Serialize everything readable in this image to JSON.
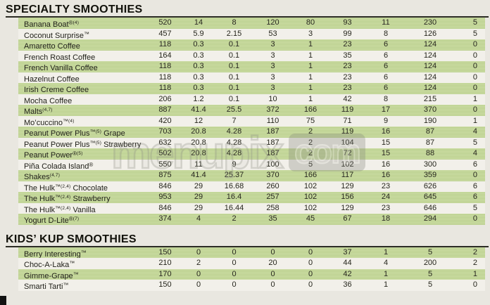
{
  "page": {
    "background": "#e9e7e0",
    "row_green": "#bdd18f",
    "row_green_stripe": "#cedea7",
    "row_white": "#f2f0ea",
    "rule_color": "#2b2b24",
    "corner_artifact_color": "#121212"
  },
  "watermark": {
    "text_main": "menupix",
    "text_suffix": "com"
  },
  "sections": [
    {
      "title": "SPECIALTY SMOOTHIES",
      "rows": [
        {
          "name": "Banana Boat",
          "mark": "®",
          "note": "(4)",
          "suffix": "",
          "values": [
            "520",
            "14",
            "8",
            "120",
            "80",
            "93",
            "11",
            "230",
            "5"
          ]
        },
        {
          "name": "Coconut Surprise",
          "mark": "™",
          "note": "",
          "suffix": "",
          "values": [
            "457",
            "5.9",
            "2.15",
            "53",
            "3",
            "99",
            "8",
            "126",
            "5"
          ]
        },
        {
          "name": "Amaretto Coffee",
          "mark": "",
          "note": "",
          "suffix": "",
          "values": [
            "118",
            "0.3",
            "0.1",
            "3",
            "1",
            "23",
            "6",
            "124",
            "0"
          ]
        },
        {
          "name": "French Roast Coffee",
          "mark": "",
          "note": "",
          "suffix": "",
          "values": [
            "164",
            "0.3",
            "0.1",
            "3",
            "1",
            "35",
            "6",
            "124",
            "0"
          ]
        },
        {
          "name": "French Vanilla Coffee",
          "mark": "",
          "note": "",
          "suffix": "",
          "values": [
            "118",
            "0.3",
            "0.1",
            "3",
            "1",
            "23",
            "6",
            "124",
            "0"
          ]
        },
        {
          "name": "Hazelnut Coffee",
          "mark": "",
          "note": "",
          "suffix": "",
          "values": [
            "118",
            "0.3",
            "0.1",
            "3",
            "1",
            "23",
            "6",
            "124",
            "0"
          ]
        },
        {
          "name": "Irish Creme Coffee",
          "mark": "",
          "note": "",
          "suffix": "",
          "values": [
            "118",
            "0.3",
            "0.1",
            "3",
            "1",
            "23",
            "6",
            "124",
            "0"
          ]
        },
        {
          "name": "Mocha Coffee",
          "mark": "",
          "note": "",
          "suffix": "",
          "values": [
            "206",
            "1.2",
            "0.1",
            "10",
            "1",
            "42",
            "8",
            "215",
            "1"
          ]
        },
        {
          "name": "Malts",
          "mark": "",
          "note": "(4,7)",
          "suffix": "",
          "values": [
            "887",
            "41.4",
            "25.5",
            "372",
            "166",
            "119",
            "17",
            "370",
            "0"
          ]
        },
        {
          "name": "Mo’cuccino",
          "mark": "™",
          "note": "(4)",
          "suffix": "",
          "values": [
            "420",
            "12",
            "7",
            "110",
            "75",
            "71",
            "9",
            "190",
            "1"
          ]
        },
        {
          "name": "Peanut Power Plus",
          "mark": "™",
          "note": "(5)",
          "suffix": "Grape",
          "values": [
            "703",
            "20.8",
            "4.28",
            "187",
            "2",
            "119",
            "16",
            "87",
            "4"
          ]
        },
        {
          "name": "Peanut Power Plus",
          "mark": "™",
          "note": "(5)",
          "suffix": "Strawberry",
          "values": [
            "632",
            "20.8",
            "4.28",
            "187",
            "2",
            "104",
            "15",
            "87",
            "5"
          ]
        },
        {
          "name": "Peanut Power",
          "mark": "®",
          "note": "(5)",
          "suffix": "",
          "values": [
            "502",
            "20.8",
            "4.28",
            "187",
            "2",
            "72",
            "15",
            "88",
            "4"
          ]
        },
        {
          "name": "Piña Colada Island",
          "mark": "®",
          "note": "",
          "suffix": "",
          "values": [
            "550",
            "11",
            "9",
            "100",
            "5",
            "102",
            "16",
            "300",
            "6"
          ]
        },
        {
          "name": "Shakes",
          "mark": "",
          "note": "(4,7)",
          "suffix": "",
          "values": [
            "875",
            "41.4",
            "25.37",
            "370",
            "166",
            "117",
            "16",
            "359",
            "0"
          ]
        },
        {
          "name": "The Hulk",
          "mark": "™",
          "note": "(2,4)",
          "suffix": "Chocolate",
          "values": [
            "846",
            "29",
            "16.68",
            "260",
            "102",
            "129",
            "23",
            "626",
            "6"
          ]
        },
        {
          "name": "The Hulk",
          "mark": "™",
          "note": "(2,4)",
          "suffix": "Strawberry",
          "values": [
            "953",
            "29",
            "16.4",
            "257",
            "102",
            "156",
            "24",
            "645",
            "6"
          ]
        },
        {
          "name": "The Hulk",
          "mark": "™",
          "note": "(2,4)",
          "suffix": "Vanilla",
          "values": [
            "846",
            "29",
            "16.44",
            "258",
            "102",
            "129",
            "23",
            "646",
            "5"
          ]
        },
        {
          "name": "Yogurt D-Lite",
          "mark": "®",
          "note": "(7)",
          "suffix": "",
          "values": [
            "374",
            "4",
            "2",
            "35",
            "45",
            "67",
            "18",
            "294",
            "0"
          ]
        }
      ]
    },
    {
      "title": "KIDS’ KUP SMOOTHIES",
      "rows": [
        {
          "name": "Berry Interesting",
          "mark": "™",
          "note": "",
          "suffix": "",
          "values": [
            "150",
            "0",
            "0",
            "0",
            "0",
            "37",
            "1",
            "5",
            "2"
          ]
        },
        {
          "name": "Choc-A-Laka",
          "mark": "™",
          "note": "",
          "suffix": "",
          "values": [
            "210",
            "2",
            "0",
            "20",
            "0",
            "44",
            "4",
            "200",
            "2"
          ]
        },
        {
          "name": "Gimme-Grape",
          "mark": "™",
          "note": "",
          "suffix": "",
          "values": [
            "170",
            "0",
            "0",
            "0",
            "0",
            "42",
            "1",
            "5",
            "1"
          ]
        },
        {
          "name": "Smarti Tarti",
          "mark": "™",
          "note": "",
          "suffix": "",
          "values": [
            "150",
            "0",
            "0",
            "0",
            "0",
            "36",
            "1",
            "5",
            "0"
          ]
        }
      ]
    }
  ]
}
